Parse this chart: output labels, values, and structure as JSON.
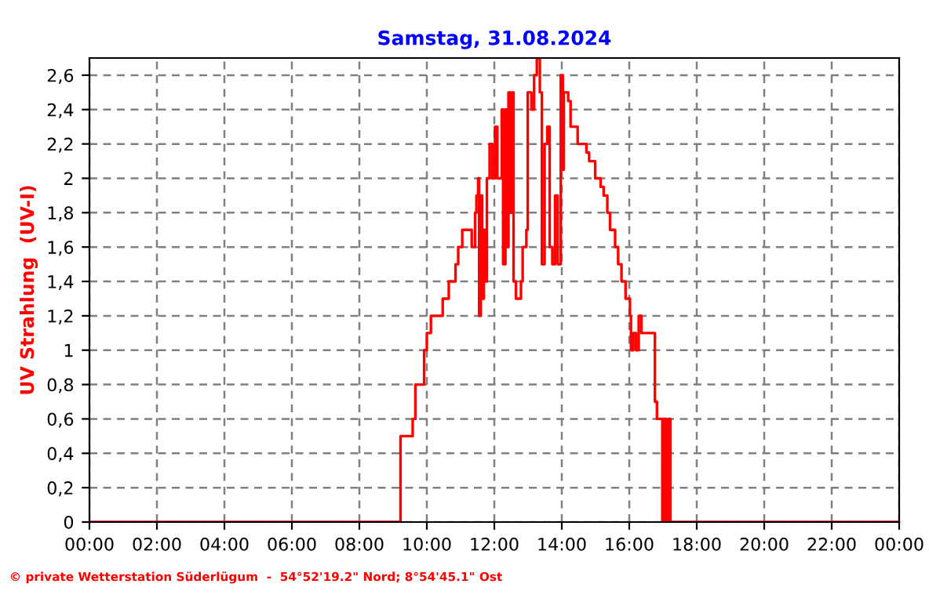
{
  "chart_data": {
    "type": "step",
    "title": "Samstag, 31.08.2024",
    "ylabel": "UV Strahlung  (UV-I)",
    "annotations": [
      "© private Wetterstation Süderlügum  -  54°52'19.2\" Nord; 8°54'45.1\" Ost"
    ],
    "series": [
      {
        "color": "#ff0000",
        "x": [
          0,
          9.22,
          9.58,
          9.66,
          9.92,
          10.0,
          10.12,
          10.47,
          10.65,
          10.85,
          10.93,
          11.05,
          11.33,
          11.43,
          11.47,
          11.52,
          11.55,
          11.6,
          11.64,
          11.69,
          11.74,
          11.78,
          11.86,
          11.94,
          12.02,
          12.09,
          12.22,
          12.26,
          12.33,
          12.37,
          12.42,
          12.48,
          12.53,
          12.57,
          12.64,
          12.79,
          12.84,
          12.95,
          12.99,
          13.1,
          13.18,
          13.26,
          13.35,
          13.41,
          13.49,
          13.57,
          13.64,
          13.72,
          13.8,
          13.88,
          13.97,
          14.03,
          14.06,
          14.19,
          14.26,
          14.47,
          14.73,
          14.81,
          14.99,
          15.15,
          15.24,
          15.35,
          15.43,
          15.58,
          15.67,
          15.77,
          15.89,
          16.02,
          16.05,
          16.12,
          16.2,
          16.28,
          16.36,
          16.76,
          16.82,
          16.98,
          17.02,
          17.09,
          17.16,
          17.22,
          24
        ],
        "values": [
          0,
          0.5,
          0.6,
          0.8,
          1.0,
          1.1,
          1.2,
          1.3,
          1.4,
          1.5,
          1.6,
          1.7,
          1.6,
          1.8,
          1.9,
          2.0,
          1.2,
          1.9,
          1.3,
          1.7,
          1.4,
          2.0,
          2.2,
          2.0,
          2.3,
          2.0,
          2.4,
          1.5,
          2.4,
          1.6,
          2.5,
          1.8,
          2.5,
          1.4,
          1.3,
          1.4,
          1.6,
          1.7,
          2.5,
          2.4,
          2.6,
          2.7,
          2.5,
          1.5,
          2.2,
          2.3,
          1.6,
          1.5,
          1.9,
          1.5,
          2.6,
          2.05,
          2.5,
          2.45,
          2.3,
          2.2,
          2.15,
          2.1,
          2.0,
          1.95,
          1.9,
          1.8,
          1.7,
          1.6,
          1.5,
          1.4,
          1.3,
          1.2,
          1.0,
          1.1,
          1.0,
          1.2,
          1.1,
          0.7,
          0.6,
          0,
          0.6,
          0,
          0.6,
          0,
          0
        ]
      }
    ],
    "xlim": [
      0,
      24
    ],
    "xticks": [
      {
        "value": 0,
        "label": "00:00"
      },
      {
        "value": 2,
        "label": "02:00"
      },
      {
        "value": 4,
        "label": "04:00"
      },
      {
        "value": 6,
        "label": "06:00"
      },
      {
        "value": 8,
        "label": "08:00"
      },
      {
        "value": 10,
        "label": "10:00"
      },
      {
        "value": 12,
        "label": "12:00"
      },
      {
        "value": 14,
        "label": "14:00"
      },
      {
        "value": 16,
        "label": "16:00"
      },
      {
        "value": 18,
        "label": "18:00"
      },
      {
        "value": 20,
        "label": "20:00"
      },
      {
        "value": 22,
        "label": "22:00"
      },
      {
        "value": 24,
        "label": "00:00"
      }
    ],
    "ylim": [
      0,
      2.7
    ],
    "yticks": [
      0,
      {
        "value": 0.2,
        "label": "0,2"
      },
      {
        "value": 0.4,
        "label": "0,4"
      },
      {
        "value": 0.6,
        "label": "0,6"
      },
      {
        "value": 0.8,
        "label": "0,8"
      },
      1,
      {
        "value": 1.2,
        "label": "1,2"
      },
      {
        "value": 1.4,
        "label": "1,4"
      },
      {
        "value": 1.6,
        "label": "1,6"
      },
      {
        "value": 1.8,
        "label": "1,8"
      },
      2,
      {
        "value": 2.2,
        "label": "2,2"
      },
      {
        "value": 2.4,
        "label": "2,4"
      },
      {
        "value": 2.6,
        "label": "2,6"
      }
    ],
    "grid": true,
    "legend": false,
    "line_style": "solid",
    "marker": "none"
  }
}
